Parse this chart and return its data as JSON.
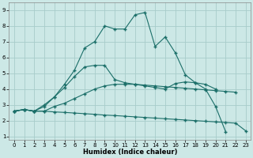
{
  "xlabel": "Humidex (Indice chaleur)",
  "xlim": [
    -0.5,
    23.5
  ],
  "ylim": [
    0.8,
    9.5
  ],
  "bg_color": "#cce8e6",
  "grid_color": "#a8ccca",
  "line_color": "#1a6e68",
  "line1_y": [
    2.6,
    2.7,
    2.6,
    2.9,
    3.5,
    4.3,
    5.2,
    6.6,
    7.0,
    8.0,
    7.8,
    7.8,
    8.7,
    8.85,
    6.7,
    7.3,
    6.3,
    4.9,
    4.4,
    4.0,
    2.9,
    1.3
  ],
  "line2_y": [
    2.6,
    2.7,
    2.6,
    2.6,
    2.55,
    2.52,
    2.48,
    2.44,
    2.4,
    2.35,
    2.32,
    2.28,
    2.24,
    2.2,
    2.16,
    2.12,
    2.08,
    2.04,
    2.0,
    1.96,
    1.92,
    1.88,
    1.84,
    1.35
  ],
  "line3_y": [
    2.6,
    2.7,
    2.6,
    2.6,
    2.9,
    3.1,
    3.4,
    3.7,
    4.0,
    4.2,
    4.3,
    4.3,
    4.3,
    4.25,
    4.2,
    4.15,
    4.1,
    4.05,
    4.0,
    3.95,
    3.9,
    3.85,
    3.8,
    null
  ],
  "line4_y": [
    2.6,
    2.7,
    2.6,
    3.0,
    3.5,
    4.1,
    4.8,
    5.4,
    5.5,
    5.5,
    4.6,
    4.4,
    4.3,
    4.2,
    4.1,
    4.0,
    4.35,
    4.45,
    4.4,
    4.3,
    4.0,
    null,
    null,
    null
  ]
}
